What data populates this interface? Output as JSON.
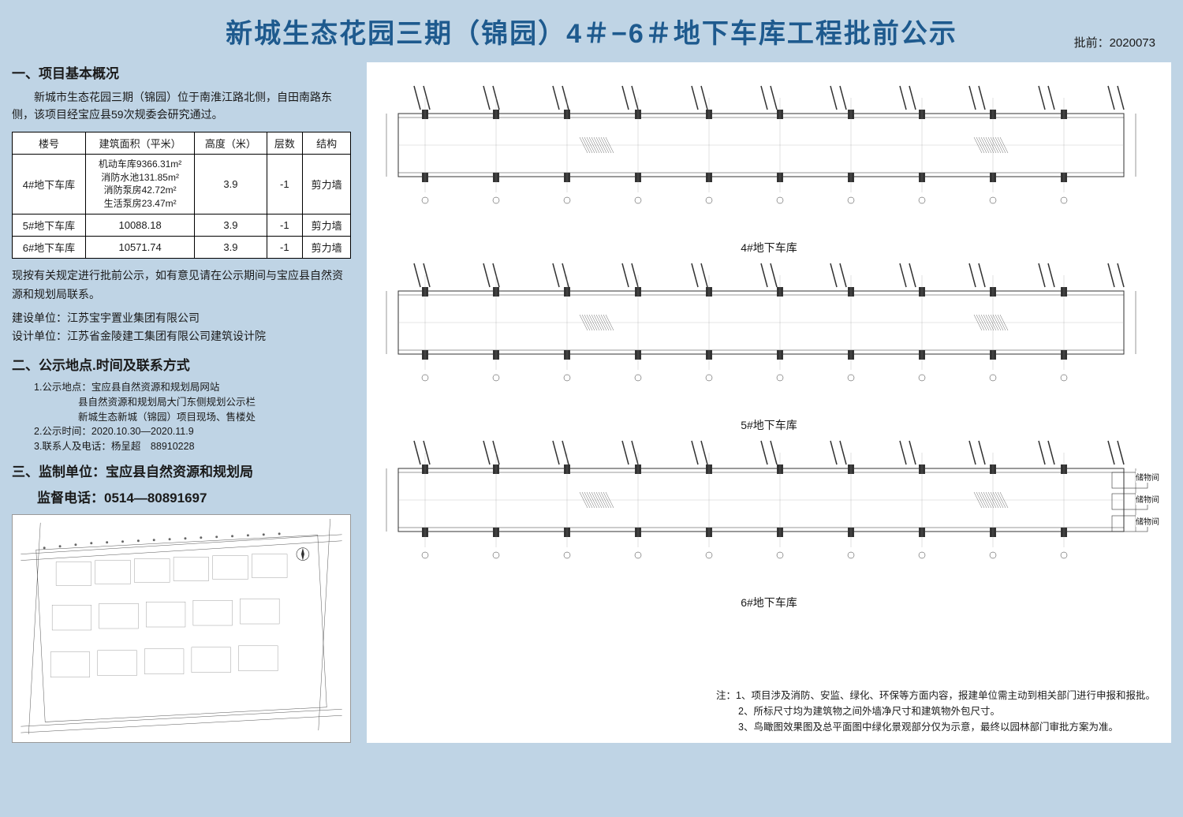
{
  "header": {
    "title": "新城生态花园三期（锦园）4＃−6＃地下车库工程批前公示",
    "approval_label": "批前：",
    "approval_number": "2020073"
  },
  "section1": {
    "title": "一、项目基本概况",
    "intro": "新城市生态花园三期（锦园）位于南淮江路北侧，自田南路东侧，该项目经宝应县59次规委会研究通过。"
  },
  "table": {
    "headers": [
      "楼号",
      "建筑面积（平米）",
      "高度（米）",
      "层数",
      "结构"
    ],
    "rows": [
      {
        "building": "4#地下车库",
        "area_lines": [
          "机动车库9366.31m²",
          "消防水池131.85m²",
          "消防泵房42.72m²",
          "生活泵房23.47m²"
        ],
        "height": "3.9",
        "floors": "-1",
        "structure": "剪力墙"
      },
      {
        "building": "5#地下车库",
        "area_lines": [
          "10088.18"
        ],
        "height": "3.9",
        "floors": "-1",
        "structure": "剪力墙"
      },
      {
        "building": "6#地下车库",
        "area_lines": [
          "10571.74"
        ],
        "height": "3.9",
        "floors": "-1",
        "structure": "剪力墙"
      }
    ]
  },
  "notice": "现按有关规定进行批前公示，如有意见请在公示期间与宝应县自然资源和规划局联系。",
  "developer": {
    "label": "建设单位：",
    "value": "江苏宝宇置业集团有限公司"
  },
  "designer": {
    "label": "设计单位：",
    "value": "江苏省金陵建工集团有限公司建筑设计院"
  },
  "section2": {
    "title": "二、公示地点.时间及联系方式",
    "items": [
      {
        "label": "1.公示地点：",
        "lines": [
          "宝应县自然资源和规划局网站",
          "县自然资源和规划局大门东侧规划公示栏",
          "新城生态新城（锦园）项目现场、售楼处"
        ]
      },
      {
        "label": "2.公示时间：",
        "lines": [
          "2020.10.30—2020.11.9"
        ]
      },
      {
        "label": "3.联系人及电话：",
        "lines": [
          "杨呈超　88910228"
        ]
      }
    ]
  },
  "section3": {
    "title": "三、监制单位：宝应县自然资源和规划局",
    "phone_label": "监督电话：",
    "phone": "0514—80891697"
  },
  "garages": [
    {
      "label": "4#地下车库"
    },
    {
      "label": "5#地下车库"
    },
    {
      "label": "6#地下车库",
      "storage_labels": [
        "储物间",
        "储物间",
        "储物间"
      ]
    }
  ],
  "notes": {
    "prefix": "注：",
    "items": [
      "1、项目涉及消防、安监、绿化、环保等方面内容，报建单位需主动到相关部门进行申报和报批。",
      "2、所标尺寸均为建筑物之间外墙净尺寸和建筑物外包尺寸。",
      "3、鸟瞰图效果图及总平面图中绿化景观部分仅为示意，最终以园林部门审批方案为准。"
    ]
  },
  "colors": {
    "bg": "#bfd4e5",
    "title": "#1e5a8e",
    "line": "#333333"
  }
}
